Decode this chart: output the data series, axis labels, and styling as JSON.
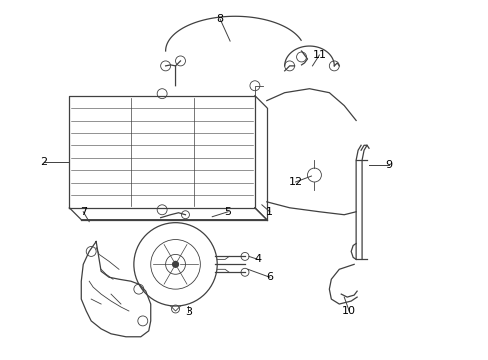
{
  "background_color": "#ffffff",
  "line_color": "#404040",
  "label_color": "#000000",
  "figsize": [
    4.89,
    3.6
  ],
  "dpi": 100,
  "lw": 0.9,
  "fontsize": 7.5
}
